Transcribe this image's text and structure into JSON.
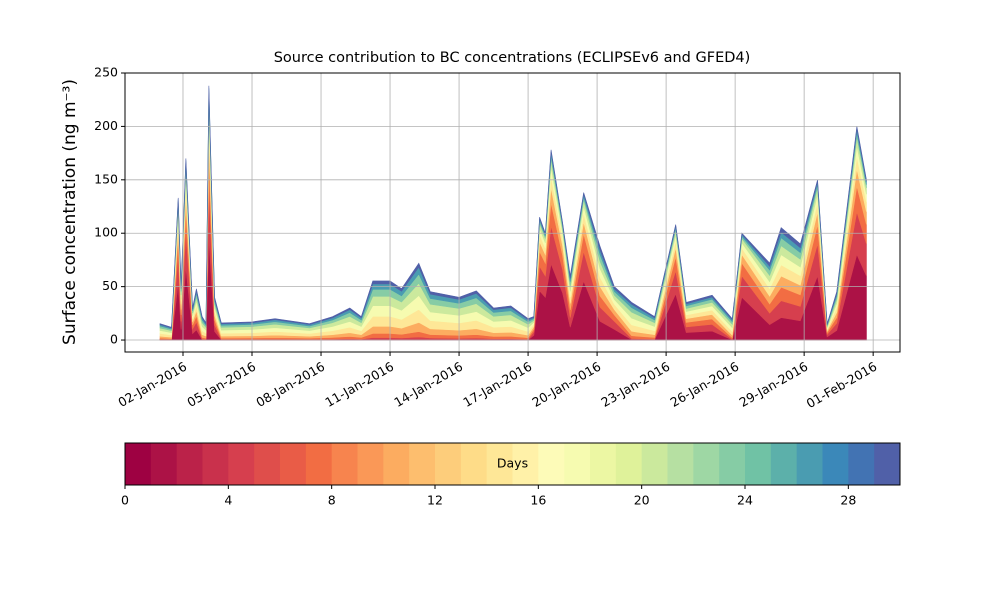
{
  "chart_data": {
    "type": "stacked_area",
    "title": "Source contribution to BC concentrations (ECLIPSEv6 and GFED4)",
    "ylabel": "Surface concentration (ng m⁻³)",
    "x": [
      "2016-01-01T00:00",
      "2016-01-01T12:00",
      "2016-01-01T19:00",
      "2016-01-01T22:00",
      "2016-01-02T03:00",
      "2016-01-02T10:00",
      "2016-01-02T14:00",
      "2016-01-02T20:00",
      "2016-01-03T00:00",
      "2016-01-03T03:00",
      "2016-01-03T09:00",
      "2016-01-03T16:00",
      "2016-01-05T00:00",
      "2016-01-06T00:00",
      "2016-01-07T12:00",
      "2016-01-08T12:00",
      "2016-01-09T06:00",
      "2016-01-09T18:00",
      "2016-01-10T06:00",
      "2016-01-11T00:00",
      "2016-01-11T12:00",
      "2016-01-12T06:00",
      "2016-01-12T18:00",
      "2016-01-14T00:00",
      "2016-01-14T18:00",
      "2016-01-15T12:00",
      "2016-01-16T06:00",
      "2016-01-17T00:00",
      "2016-01-17T06:00",
      "2016-01-17T12:00",
      "2016-01-17T18:00",
      "2016-01-18T00:00",
      "2016-01-18T12:00",
      "2016-01-18T20:00",
      "2016-01-19T10:00",
      "2016-01-20T03:00",
      "2016-01-20T18:00",
      "2016-01-21T12:00",
      "2016-01-22T12:00",
      "2016-01-23T10:00",
      "2016-01-23T21:00",
      "2016-01-25T00:00",
      "2016-01-25T21:00",
      "2016-01-26T07:00",
      "2016-01-27T12:00",
      "2016-01-28T00:00",
      "2016-01-28T20:00",
      "2016-01-29T14:00",
      "2016-01-30T00:00",
      "2016-01-30T10:00",
      "2016-01-31T07:00",
      "2016-01-31T17:00"
    ],
    "series": [
      {
        "color": "#ac1246",
        "values": [
          0.2,
          0.1,
          53.2,
          10,
          68,
          6,
          9.6,
          0.2,
          0.2,
          95.2,
          8,
          0.2,
          0.2,
          0.2,
          0.2,
          0.2,
          0.3,
          0.2,
          0.6,
          0.6,
          0.5,
          0.7,
          0.5,
          0.4,
          0.5,
          0.3,
          0.3,
          0.2,
          4.4,
          46,
          40,
          71.2,
          44,
          12,
          55.2,
          17.6,
          10,
          0.4,
          0.2,
          43.2,
          7,
          8.4,
          0.2,
          40,
          14.4,
          21,
          18,
          60,
          3,
          9,
          80,
          60
        ]
      },
      {
        "color": "#d63f4e",
        "values": [
          0.5,
          0.4,
          26.6,
          7.5,
          34,
          4.5,
          7.2,
          0.7,
          0.5,
          47.6,
          6,
          0.5,
          0.5,
          0.6,
          0.5,
          0.7,
          0.9,
          0.7,
          1.7,
          1.7,
          1.4,
          2.2,
          1.4,
          1.2,
          1.4,
          0.9,
          1.0,
          0.6,
          3.3,
          23,
          20,
          35.6,
          22,
          9,
          27.6,
          13.2,
          7.5,
          1.1,
          0.7,
          21.6,
          5.3,
          6.3,
          0.6,
          20,
          10.8,
          15.8,
          13.5,
          30,
          2.3,
          6.8,
          40,
          30
        ]
      },
      {
        "color": "#f26d43",
        "values": [
          1.1,
          0.8,
          16.0,
          6,
          20.4,
          3.6,
          5.8,
          1.5,
          1.1,
          28.6,
          4.8,
          1.1,
          1.2,
          1.4,
          1.1,
          1.5,
          2.1,
          1.5,
          3.9,
          3.9,
          3.4,
          5.0,
          3.2,
          2.8,
          3.2,
          2.1,
          2.2,
          1.4,
          2.6,
          13.8,
          12,
          21.4,
          13.2,
          7.2,
          16.6,
          10.6,
          6,
          2.5,
          1.5,
          13.0,
          4.2,
          5.0,
          1.4,
          12,
          8.6,
          12.6,
          10.8,
          18,
          1.8,
          5.4,
          24,
          18
        ]
      },
      {
        "color": "#fcac60",
        "values": [
          1.8,
          1.4,
          10.6,
          5,
          13.6,
          3,
          4.8,
          2.6,
          1.9,
          19.0,
          4,
          1.9,
          2.0,
          2.4,
          1.8,
          2.6,
          3.6,
          2.6,
          6.6,
          6.6,
          5.8,
          8.6,
          5.4,
          4.8,
          5.5,
          3.6,
          3.8,
          2.4,
          2.2,
          9.2,
          8,
          14.2,
          8.8,
          6,
          11.0,
          8.8,
          5,
          4.2,
          2.6,
          8.6,
          3.5,
          4.2,
          2.4,
          8,
          7.2,
          10.5,
          9,
          12,
          1.5,
          4.5,
          16,
          12
        ]
      },
      {
        "color": "#fee797",
        "values": [
          2.6,
          2.0,
          8.0,
          5,
          10.2,
          3,
          4.8,
          3.7,
          2.7,
          14.3,
          4,
          2.7,
          2.9,
          3.4,
          2.6,
          3.7,
          5.1,
          3.7,
          9.4,
          9.4,
          8.2,
          12.2,
          7.7,
          6.8,
          7.8,
          5.1,
          5.4,
          3.4,
          2.2,
          6.9,
          6,
          10.7,
          6.6,
          6,
          8.3,
          8.8,
          5,
          6.0,
          3.7,
          6.5,
          3.5,
          4.2,
          3.4,
          6,
          7.2,
          10.5,
          9,
          9,
          1.5,
          4.5,
          12,
          9
        ]
      },
      {
        "color": "#f6fbb0",
        "values": [
          2.7,
          2.2,
          6.7,
          4.5,
          8.5,
          2.7,
          4.3,
          4.0,
          2.9,
          11.9,
          3.6,
          2.9,
          3.1,
          3.6,
          2.7,
          4.0,
          5.4,
          4.0,
          9.9,
          9.9,
          8.6,
          13.0,
          8.1,
          7.2,
          8.3,
          5.4,
          5.8,
          3.6,
          2.0,
          5.8,
          5,
          8.9,
          5.5,
          5.4,
          6.9,
          7.9,
          4.5,
          6.3,
          4.0,
          5.4,
          3.2,
          3.8,
          3.6,
          5,
          6.5,
          9.5,
          8.1,
          7.5,
          1.4,
          4.1,
          10,
          7.5
        ]
      },
      {
        "color": "#cbe99d",
        "values": [
          2.4,
          1.9,
          5.3,
          4,
          6.8,
          2.4,
          3.8,
          3.5,
          2.6,
          9.5,
          3.2,
          2.6,
          2.7,
          3.2,
          2.4,
          3.5,
          4.8,
          3.5,
          8.8,
          8.8,
          7.7,
          11.5,
          7.2,
          6.4,
          7.4,
          4.8,
          5.1,
          3.2,
          1.8,
          4.6,
          4,
          7.1,
          4.4,
          4.8,
          5.5,
          7.0,
          4,
          5.6,
          3.5,
          4.3,
          2.8,
          3.4,
          3.2,
          4,
          5.8,
          8.4,
          7.2,
          6,
          1.2,
          3.6,
          8,
          6
        ]
      },
      {
        "color": "#86cca5",
        "values": [
          1.8,
          1.4,
          2.7,
          3.5,
          3.4,
          2.1,
          3.4,
          2.6,
          1.9,
          4.8,
          2.8,
          1.9,
          2.0,
          2.4,
          1.8,
          2.6,
          3.6,
          2.6,
          6.6,
          6.6,
          5.8,
          8.6,
          5.4,
          4.8,
          5.5,
          3.6,
          3.8,
          2.4,
          1.5,
          2.3,
          2,
          3.6,
          2.2,
          4.2,
          2.8,
          6.2,
          3.5,
          4.2,
          2.6,
          2.2,
          2.5,
          2.9,
          2.4,
          2,
          5.0,
          7.4,
          6.3,
          3,
          1.1,
          3.2,
          4,
          3
        ]
      },
      {
        "color": "#4a9cb1",
        "values": [
          1.4,
          1.1,
          2.7,
          2.5,
          3.4,
          1.5,
          2.4,
          2.0,
          1.4,
          4.8,
          2,
          1.4,
          1.5,
          1.8,
          1.4,
          2.0,
          2.7,
          2.0,
          5.0,
          5.0,
          4.3,
          6.5,
          4.1,
          3.6,
          4.1,
          2.7,
          2.9,
          1.8,
          1.1,
          2.3,
          2,
          3.6,
          2.2,
          3,
          2.8,
          4.4,
          2.5,
          3.2,
          2.0,
          2.2,
          1.8,
          2.1,
          1.8,
          2,
          3.6,
          5.3,
          4.5,
          3,
          0.8,
          2.3,
          4,
          3
        ]
      },
      {
        "color": "#5060a8",
        "values": [
          0.8,
          0.6,
          1.3,
          2,
          1.7,
          1.2,
          1.9,
          1.1,
          0.8,
          2.4,
          1.6,
          0.8,
          0.9,
          1.0,
          0.8,
          1.1,
          1.5,
          1.1,
          2.8,
          2.8,
          2.4,
          3.6,
          2.3,
          2.0,
          2.3,
          1.5,
          1.6,
          1.0,
          0.9,
          1.2,
          1,
          1.8,
          1.1,
          2.4,
          1.4,
          3.5,
          2,
          1.8,
          1.1,
          1.1,
          1.4,
          1.7,
          1.0,
          1,
          2.9,
          4.2,
          3.6,
          1.5,
          0.6,
          1.8,
          2,
          1.5
        ]
      }
    ],
    "xlim": [
      "2015-12-30T11:30",
      "2016-02-02T04:00"
    ],
    "xticks": [
      {
        "value": "2016-01-02T00:00",
        "label": "02-Jan-2016"
      },
      {
        "value": "2016-01-05T00:00",
        "label": "05-Jan-2016"
      },
      {
        "value": "2016-01-08T00:00",
        "label": "08-Jan-2016"
      },
      {
        "value": "2016-01-11T00:00",
        "label": "11-Jan-2016"
      },
      {
        "value": "2016-01-14T00:00",
        "label": "14-Jan-2016"
      },
      {
        "value": "2016-01-17T00:00",
        "label": "17-Jan-2016"
      },
      {
        "value": "2016-01-20T00:00",
        "label": "20-Jan-2016"
      },
      {
        "value": "2016-01-23T00:00",
        "label": "23-Jan-2016"
      },
      {
        "value": "2016-01-26T00:00",
        "label": "26-Jan-2016"
      },
      {
        "value": "2016-01-29T00:00",
        "label": "29-Jan-2016"
      },
      {
        "value": "2016-02-01T00:00",
        "label": "01-Feb-2016"
      }
    ],
    "ylim": [
      -11.2,
      250
    ],
    "yticks": [
      0,
      50,
      100,
      150,
      200,
      250
    ],
    "grid": true,
    "colorbar": {
      "label": "Days",
      "lim": [
        0,
        30
      ],
      "ticks": [
        0,
        4,
        8,
        12,
        16,
        20,
        24,
        28
      ],
      "colors": [
        "#9e0142",
        "#ac1246",
        "#bb2249",
        "#c9314c",
        "#d63f4e",
        "#df4e4b",
        "#e95c47",
        "#f26d43",
        "#f7844e",
        "#fa9857",
        "#fcac60",
        "#fdbe6e",
        "#fdcd7b",
        "#fedc88",
        "#fee797",
        "#fff1a8",
        "#fdfbb8",
        "#f6fbb0",
        "#ecf7a3",
        "#dff29a",
        "#cbe99d",
        "#b6e0a2",
        "#9ed7a4",
        "#86cca5",
        "#70c2a5",
        "#5cb0aa",
        "#4a9cb1",
        "#3b88b9",
        "#4273b3",
        "#5060a8"
      ]
    }
  }
}
